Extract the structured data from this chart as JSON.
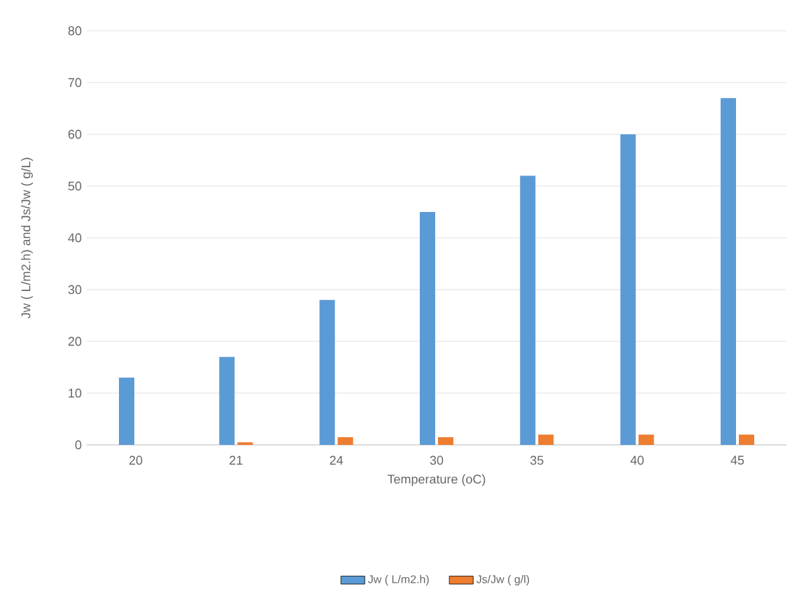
{
  "chart_data": {
    "type": "bar",
    "xlabel": "Temperature (oC)",
    "ylabel": "Jw ( L/m2.h) and Js/Jw ( g/L)",
    "categories": [
      "20",
      "21",
      "24",
      "30",
      "35",
      "40",
      "45"
    ],
    "series": [
      {
        "name": "Jw ( L/m2.h)",
        "color": "#5b9bd5",
        "values": [
          13,
          17,
          28,
          45,
          52,
          60,
          67
        ]
      },
      {
        "name": "Js/Jw ( g/l)",
        "color": "#ed7d31",
        "values": [
          0,
          0.5,
          1.5,
          1.5,
          2,
          2,
          2
        ]
      }
    ],
    "ylim": [
      0,
      80
    ],
    "yticks": [
      0,
      10,
      20,
      30,
      40,
      50,
      60,
      70,
      80
    ],
    "grid": "y",
    "legend": "bottom"
  }
}
